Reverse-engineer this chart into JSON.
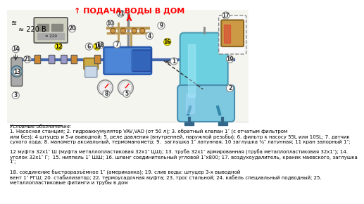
{
  "bg_color": "#ffffff",
  "title_text": "↑ ПОДАЧА ВОДЫ В ДОМ",
  "title_color": "#ff0000",
  "voltage_text": "≈ 220 В",
  "legend_title": "Условные обозначения:",
  "legend_line1": "1. Насосная станция; 2. гидроаккумулятор VAV,VAO (от 50 л); 3. обратный клапан 1″ (с етчатым фильтром",
  "legend_line2": "или без); 4 штуцер и 5-и выводной; 5. реле давления (внутренней, наружной резьбы); 6. фильтр к насосу 55L или 10SL; 7. датчик",
  "legend_line3": "сухого хода; 8. манометр аксиальный, термоманометр; 9.  заглушка 1″ латунная; 10 заглушка ¾″ латунная; 11 кран запорный 1″;",
  "legend_line5": "12 муфта 32х1″ Ш (муфта металлопластиковая 32х1″ ЦШ); 13. труба 32х1″ армированная (труба металлопластиковая 32х1″); 14.",
  "legend_line6": "уголок 32х1″ Г;  15. ниппель 1″ ШШ; 16. шланг соединительный угловой 1″x800; 17. воздухоудалитель, краник маевского, заглушка",
  "legend_line7": "1″;",
  "legend_line9": "18. соединение быстроразъёмное 1″ (американка); 19. слив воды: штуцер 3-х выводной",
  "legend_line10": "вент 1″ РГШ; 20. стабилизатор; 22. термоусадочная муфта; 23. трос стальной; 24. кабель специальный подводный; 25.",
  "legend_line11": "металлопластиковые фитинги и трубы в дом"
}
